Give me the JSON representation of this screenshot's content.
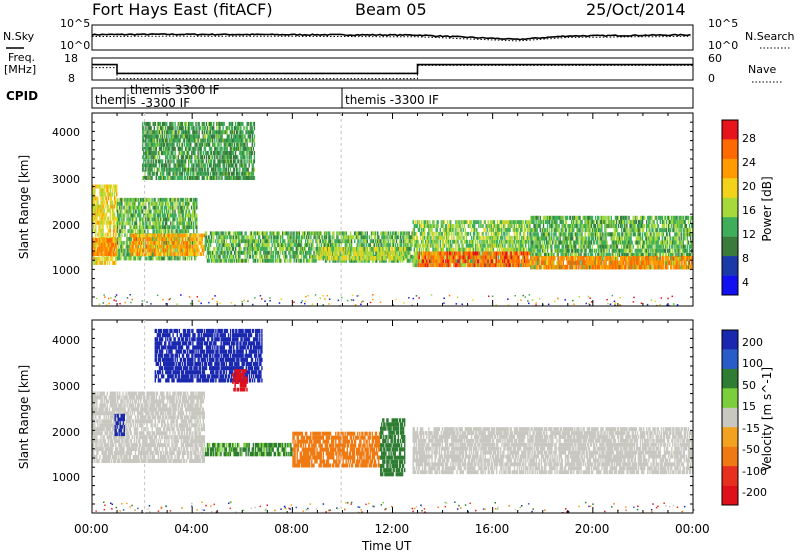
{
  "header": {
    "title": "Fort Hays East (fitACF)",
    "beam": "Beam 05",
    "date": "25/Oct/2014"
  },
  "top_panels": {
    "nsky_label": "N.Sky",
    "nsearch_label": "N.Search",
    "noise_ticks_left": [
      "10^5",
      "10^0"
    ],
    "noise_ticks_right": [
      "10^5",
      "10^0"
    ],
    "freq_label_1": "Freq.",
    "freq_label_2": "[MHz]",
    "freq_ticks": [
      "18",
      "8"
    ],
    "nave_label": "Nave",
    "nave_ticks": [
      "60",
      "0"
    ],
    "cpid_label": "CPID",
    "cpid_segments": [
      {
        "line1": "themis",
        "line2": ""
      },
      {
        "line1": "themis 3300 IF",
        "line2": "-3300 IF"
      },
      {
        "line1": "themis -3300 IF",
        "line2": ""
      }
    ]
  },
  "power_panel": {
    "ylabel": "Slant Range [km]",
    "yticks": [
      "4000",
      "3000",
      "2000",
      "1000"
    ],
    "colorbar_label": "Power [dB]",
    "colorbar_ticks": [
      "28",
      "24",
      "20",
      "16",
      "12",
      "8",
      "4"
    ],
    "colorbar_colors": [
      "#e8141c",
      "#ff6a00",
      "#ff9a00",
      "#f2d21a",
      "#a8d93a",
      "#3fae5a",
      "#3a7a3a",
      "#1a3aa8",
      "#1010f0"
    ]
  },
  "velocity_panel": {
    "ylabel": "Slant Range [km]",
    "yticks": [
      "4000",
      "3000",
      "2000",
      "1000"
    ],
    "colorbar_label": "Velocity [m s^-1]",
    "colorbar_ticks": [
      "200",
      "100",
      "50",
      "15",
      "-15",
      "-50",
      "-100",
      "-200"
    ],
    "colorbar_colors": [
      "#1a28b0",
      "#2a5cc8",
      "#2e7d32",
      "#7ccf3c",
      "#c8c8c0",
      "#f2a21e",
      "#f07a12",
      "#e83020",
      "#e0101a"
    ]
  },
  "x_axis": {
    "label": "Time UT",
    "ticks": [
      "00:00",
      "04:00",
      "08:00",
      "12:00",
      "16:00",
      "20:00",
      "00:00"
    ]
  },
  "chart_data": [
    {
      "type": "line",
      "title": "Fort Hays East (fitACF)",
      "xlabel": "",
      "ylabel": "N.Sky",
      "x_range_hours": [
        0,
        24
      ],
      "series": [
        {
          "name": "N.Sky",
          "values_by_hour": [
            {
              "x": 0,
              "y": 1000
            },
            {
              "x": 3,
              "y": 1200
            },
            {
              "x": 8,
              "y": 1000
            },
            {
              "x": 13,
              "y": 800
            },
            {
              "x": 17,
              "y": 80
            },
            {
              "x": 19,
              "y": 500
            },
            {
              "x": 24,
              "y": 900
            }
          ]
        },
        {
          "name": "N.Search",
          "values_by_hour": [
            {
              "x": 0,
              "y": 400
            },
            {
              "x": 3,
              "y": 500
            },
            {
              "x": 8,
              "y": 450
            },
            {
              "x": 13,
              "y": 350
            },
            {
              "x": 17,
              "y": 40
            },
            {
              "x": 19,
              "y": 250
            },
            {
              "x": 24,
              "y": 450
            }
          ]
        }
      ]
    },
    {
      "type": "line",
      "ylabel": "Freq. [MHz]",
      "x_range_hours": [
        0,
        24
      ],
      "series": [
        {
          "name": "Freq.",
          "steps": [
            {
              "x0": 0,
              "x1": 1,
              "y": 15
            },
            {
              "x0": 1,
              "x1": 13,
              "y": 11
            },
            {
              "x0": 13,
              "x1": 24,
              "y": 15
            }
          ]
        },
        {
          "name": "Nave",
          "steps": [
            {
              "x0": 0,
              "x1": 1,
              "y": 15
            },
            {
              "x0": 1,
              "x1": 13,
              "y": 10
            },
            {
              "x0": 13,
              "x1": 24,
              "y": 16
            }
          ]
        }
      ]
    },
    {
      "type": "heatmap",
      "ylabel": "Slant Range [km]",
      "xlabel": "Time UT",
      "x_range_hours": [
        0,
        24
      ],
      "y_range_km": [
        180,
        4500
      ],
      "colorbar": "Power [dB]",
      "patches": [
        {
          "t0": 0.0,
          "t1": 1.0,
          "r0": 1100,
          "r1": 2900,
          "value": 18
        },
        {
          "t0": 0.0,
          "t1": 1.0,
          "r0": 1300,
          "r1": 1700,
          "value": 24
        },
        {
          "t0": 1.0,
          "t1": 4.2,
          "r0": 1200,
          "r1": 2600,
          "value": 12
        },
        {
          "t0": 1.5,
          "t1": 4.5,
          "r0": 1300,
          "r1": 1800,
          "value": 22
        },
        {
          "t0": 2.0,
          "t1": 6.5,
          "r0": 3000,
          "r1": 4300,
          "value": 10
        },
        {
          "t0": 4.5,
          "t1": 12.8,
          "r0": 1150,
          "r1": 1850,
          "value": 12
        },
        {
          "t0": 9.0,
          "t1": 12.5,
          "r0": 1200,
          "r1": 1500,
          "value": 16
        },
        {
          "t0": 12.8,
          "t1": 17.5,
          "r0": 1050,
          "r1": 2100,
          "value": 14
        },
        {
          "t0": 13.0,
          "t1": 17.5,
          "r0": 1050,
          "r1": 1400,
          "value": 26
        },
        {
          "t0": 17.5,
          "t1": 24.0,
          "r0": 1000,
          "r1": 2200,
          "value": 12
        },
        {
          "t0": 17.5,
          "t1": 24.0,
          "r0": 1000,
          "r1": 1300,
          "value": 24
        }
      ]
    },
    {
      "type": "heatmap",
      "ylabel": "Slant Range [km]",
      "xlabel": "Time UT",
      "x_range_hours": [
        0,
        24
      ],
      "y_range_km": [
        180,
        4500
      ],
      "colorbar": "Velocity [m s^-1]",
      "patches": [
        {
          "t0": 0.0,
          "t1": 4.5,
          "r0": 1300,
          "r1": 2900,
          "value": 0
        },
        {
          "t0": 0.9,
          "t1": 1.3,
          "r0": 1900,
          "r1": 2400,
          "value": 200
        },
        {
          "t0": 2.5,
          "t1": 6.8,
          "r0": 3100,
          "r1": 4300,
          "value": 180
        },
        {
          "t0": 5.6,
          "t1": 6.2,
          "r0": 2900,
          "r1": 3400,
          "value": -200
        },
        {
          "t0": 4.5,
          "t1": 8.0,
          "r0": 1450,
          "r1": 1750,
          "value": 40
        },
        {
          "t0": 8.0,
          "t1": 11.5,
          "r0": 1200,
          "r1": 2000,
          "value": -60
        },
        {
          "t0": 11.5,
          "t1": 12.5,
          "r0": 1000,
          "r1": 2300,
          "value": 60
        },
        {
          "t0": 12.8,
          "t1": 24.0,
          "r0": 1050,
          "r1": 2100,
          "value": 0
        }
      ]
    }
  ]
}
